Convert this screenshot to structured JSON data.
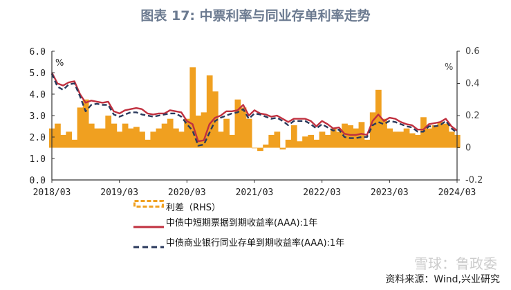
{
  "title": "图表 17: 中票利率与同业存单利率走势",
  "source": "资料来源：Wind,兴业研究",
  "watermark": "雪球：鲁政委",
  "colors": {
    "spread": "#f0a020",
    "cp": "#c0303f",
    "ncd": "#2a3a5c"
  },
  "chart_data": {
    "type": "line",
    "title": "图表 17: 中票利率与同业存单利率走势",
    "left_axis": {
      "unit": "%",
      "ylim": [
        0,
        6
      ],
      "ticks": [
        "0.0",
        "1.0",
        "2.0",
        "3.0",
        "4.0",
        "5.0",
        "6.0"
      ]
    },
    "right_axis": {
      "unit": "%",
      "ylim": [
        -0.2,
        0.6
      ],
      "ticks": [
        "-0.2",
        "0",
        "0.2",
        "0.4",
        "0.6"
      ]
    },
    "x_ticks": [
      "2018/03",
      "2019/03",
      "2020/03",
      "2021/03",
      "2022/03",
      "2023/03",
      "2024/03"
    ],
    "grid": false,
    "legend_placement": "bottom",
    "x": [
      "2018-03",
      "2018-04",
      "2018-05",
      "2018-06",
      "2018-07",
      "2018-08",
      "2018-09",
      "2018-10",
      "2018-11",
      "2018-12",
      "2019-01",
      "2019-02",
      "2019-03",
      "2019-04",
      "2019-05",
      "2019-06",
      "2019-07",
      "2019-08",
      "2019-09",
      "2019-10",
      "2019-11",
      "2019-12",
      "2020-01",
      "2020-02",
      "2020-03",
      "2020-04",
      "2020-05",
      "2020-06",
      "2020-07",
      "2020-08",
      "2020-09",
      "2020-10",
      "2020-11",
      "2020-12",
      "2021-01",
      "2021-02",
      "2021-03",
      "2021-04",
      "2021-05",
      "2021-06",
      "2021-07",
      "2021-08",
      "2021-09",
      "2021-10",
      "2021-11",
      "2021-12",
      "2022-01",
      "2022-02",
      "2022-03",
      "2022-04",
      "2022-05",
      "2022-06",
      "2022-07",
      "2022-08",
      "2022-09",
      "2022-10",
      "2022-11",
      "2022-12",
      "2023-01",
      "2023-02",
      "2023-03",
      "2023-04",
      "2023-05",
      "2023-06",
      "2023-07",
      "2023-08",
      "2023-09",
      "2023-10",
      "2023-11",
      "2023-12",
      "2024-01",
      "2024-02",
      "2024-03"
    ],
    "series": [
      {
        "name": "利差（RHS）",
        "axis": "right",
        "style": "bar",
        "values": [
          0.12,
          0.15,
          0.08,
          0.1,
          0.05,
          0.25,
          0.3,
          0.15,
          0.12,
          0.12,
          0.2,
          0.15,
          0.1,
          0.15,
          0.12,
          0.13,
          0.1,
          0.05,
          0.1,
          0.12,
          0.15,
          0.18,
          0.12,
          0.1,
          0.18,
          0.5,
          0.2,
          0.22,
          0.45,
          0.35,
          0.1,
          0.18,
          0.08,
          0.3,
          0.25,
          0.18,
          0.0,
          -0.02,
          0.02,
          0.08,
          0.1,
          -0.01,
          0.05,
          0.14,
          0.04,
          0.07,
          0.08,
          0.05,
          0.1,
          0.08,
          0.12,
          0.1,
          0.15,
          0.14,
          0.12,
          0.16,
          0.05,
          0.22,
          0.36,
          0.18,
          0.12,
          0.1,
          0.1,
          0.12,
          0.09,
          0.08,
          0.19,
          0.12,
          0.14,
          0.16,
          0.15,
          0.1,
          0.08
        ]
      },
      {
        "name": "中债中短期票据到期收益率(AAA):1年",
        "axis": "left",
        "style": "solid",
        "values": [
          5.0,
          4.5,
          4.4,
          4.55,
          4.6,
          4.0,
          3.6,
          3.7,
          3.65,
          3.6,
          3.65,
          3.2,
          3.1,
          3.25,
          3.3,
          3.35,
          3.3,
          3.1,
          3.05,
          3.1,
          3.1,
          3.25,
          3.2,
          3.15,
          2.75,
          2.6,
          1.8,
          1.85,
          2.6,
          2.9,
          3.0,
          3.2,
          3.2,
          3.25,
          3.5,
          3.0,
          3.25,
          3.1,
          3.05,
          2.95,
          3.0,
          2.85,
          2.7,
          2.85,
          2.85,
          2.85,
          2.75,
          2.5,
          2.75,
          2.6,
          2.4,
          2.45,
          2.15,
          2.1,
          2.1,
          2.15,
          2.1,
          2.75,
          3.05,
          2.75,
          2.9,
          2.85,
          2.7,
          2.6,
          2.55,
          2.35,
          2.35,
          2.6,
          2.65,
          2.7,
          2.85,
          2.5,
          2.3
        ]
      },
      {
        "name": "中债商业银行同业存单到期收益率(AAA):1年",
        "axis": "left",
        "style": "dashed",
        "values": [
          4.95,
          4.35,
          4.2,
          4.45,
          4.5,
          3.9,
          3.2,
          3.5,
          3.55,
          3.5,
          3.5,
          3.05,
          2.95,
          3.05,
          3.15,
          3.15,
          3.05,
          3.0,
          2.95,
          3.0,
          3.05,
          3.1,
          3.1,
          2.95,
          2.6,
          2.3,
          1.6,
          1.65,
          2.2,
          2.75,
          2.9,
          3.0,
          3.1,
          3.15,
          3.3,
          2.85,
          3.1,
          3.05,
          2.95,
          2.85,
          2.9,
          2.75,
          2.55,
          2.75,
          2.75,
          2.75,
          2.6,
          2.4,
          2.6,
          2.45,
          2.3,
          2.35,
          2.0,
          1.95,
          1.95,
          2.0,
          2.0,
          2.55,
          2.7,
          2.6,
          2.75,
          2.7,
          2.6,
          2.5,
          2.45,
          2.25,
          2.25,
          2.5,
          2.5,
          2.55,
          2.75,
          2.4,
          2.2
        ]
      }
    ]
  },
  "legend": [
    "利差（RHS）",
    "中债中短期票据到期收益率(AAA):1年",
    "中债商业银行同业存单到期收益率(AAA):1年"
  ]
}
